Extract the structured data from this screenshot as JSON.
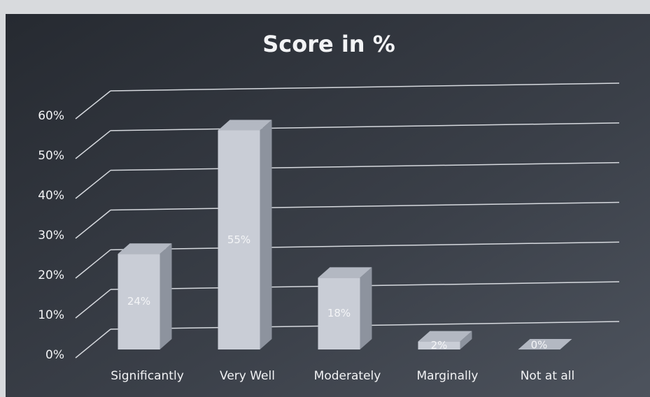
{
  "chart_data": {
    "type": "bar3d",
    "title": "Score in %",
    "categories": [
      "Significantly",
      "Very Well",
      "Moderately",
      "Marginally",
      "Not at all"
    ],
    "values": [
      24,
      55,
      18,
      2,
      0
    ],
    "value_labels": [
      "24%",
      "55%",
      "18%",
      "2%",
      "0%"
    ],
    "color": "#c9cdd6",
    "ylim": [
      0,
      60
    ],
    "yticks": [
      {
        "value": 0,
        "label": "0%"
      },
      {
        "value": 10,
        "label": "10%"
      },
      {
        "value": 20,
        "label": "20%"
      },
      {
        "value": 30,
        "label": "30%"
      },
      {
        "value": 40,
        "label": "40%"
      },
      {
        "value": 50,
        "label": "50%"
      },
      {
        "value": 60,
        "label": "60%"
      }
    ],
    "grid": true
  }
}
